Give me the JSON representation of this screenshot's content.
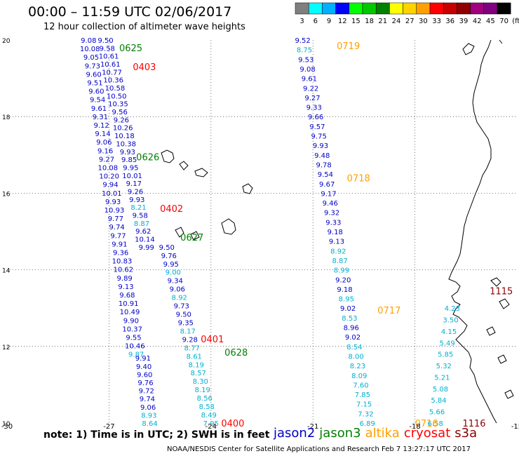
{
  "title": "00:00 – 11:59 UTC 02/06/2017",
  "subtitle": "12 hour collection of altimeter wave heights",
  "colorbar": {
    "unit": "(ft)",
    "stops": [
      {
        "label": "3",
        "color": "#7f7f7f"
      },
      {
        "label": "6",
        "color": "#00ffff"
      },
      {
        "label": "9",
        "color": "#00b0ff"
      },
      {
        "label": "12",
        "color": "#0000ff"
      },
      {
        "label": "15",
        "color": "#00ff00"
      },
      {
        "label": "18",
        "color": "#00c800"
      },
      {
        "label": "21",
        "color": "#008000"
      },
      {
        "label": "24",
        "color": "#ffff00"
      },
      {
        "label": "27",
        "color": "#ffd200"
      },
      {
        "label": "30",
        "color": "#ffa000"
      },
      {
        "label": "33",
        "color": "#ff0000"
      },
      {
        "label": "36",
        "color": "#c80000"
      },
      {
        "label": "39",
        "color": "#900000"
      },
      {
        "label": "42",
        "color": "#a0007f"
      },
      {
        "label": "45",
        "color": "#800080"
      },
      {
        "label": "70",
        "color": "#000000"
      }
    ]
  },
  "axes": {
    "x_ticks": [
      "-30",
      "-27",
      "-24",
      "-21",
      "-18",
      "-15"
    ],
    "y_ticks": [
      "20",
      "18",
      "16",
      "14",
      "12",
      "10"
    ]
  },
  "satellite_colors": {
    "jason2": "#0000c8",
    "jason3": "#008000",
    "altika": "#ffa000",
    "cryosat": "#ff0000",
    "s3a": "#8b0000",
    "swh_low": "#00b0d0"
  },
  "tracks": [
    {
      "name": "track-west-a",
      "lon_start": -27.6,
      "lat_start": 20.0,
      "lon_end": -26.2,
      "lat_end": 11.8,
      "values": [
        "9.08",
        "10.08",
        "9.05",
        "9.73",
        "9.60",
        "9.51",
        "9.60",
        "9.54",
        "9.61",
        "9.31",
        "9.12",
        "9.14",
        "9.06",
        "9.16",
        "9.27",
        "10.08",
        "10.20",
        "9.94",
        "10.01",
        "9.93",
        "10.93",
        "9.77",
        "9.74",
        "9.77",
        "9.91",
        "9.36",
        "10.83",
        "10.62",
        "9.89",
        "9.13",
        "9.68",
        "10.91",
        "10.49",
        "9.90",
        "10.37",
        "9.55",
        "10.46",
        "9.87"
      ],
      "colors": [
        "j",
        "j",
        "j",
        "j",
        "j",
        "j",
        "j",
        "j",
        "j",
        "j",
        "j",
        "j",
        "j",
        "j",
        "j",
        "j",
        "j",
        "j",
        "j",
        "j",
        "j",
        "j",
        "j",
        "j",
        "j",
        "j",
        "j",
        "j",
        "j",
        "j",
        "j",
        "j",
        "j",
        "j",
        "j",
        "j",
        "j",
        "c"
      ]
    },
    {
      "name": "track-west-b",
      "lon_start": -27.1,
      "lat_start": 20.0,
      "lon_end": -25.9,
      "lat_end": 14.6,
      "values": [
        "9.50",
        "9.58",
        "10.61",
        "10.61",
        "10.77",
        "10.36",
        "10.58",
        "10.50",
        "10.35",
        "9.56",
        "9.26",
        "10.26",
        "10.18",
        "10.38",
        "9.93",
        "9.85",
        "9.95",
        "10.01",
        "9.17",
        "9.26",
        "9.93",
        "8.21",
        "9.58",
        "8.87",
        "9.62",
        "10.14",
        "9.99"
      ],
      "colors": [
        "j",
        "j",
        "j",
        "j",
        "j",
        "j",
        "j",
        "j",
        "j",
        "j",
        "j",
        "j",
        "j",
        "j",
        "j",
        "j",
        "j",
        "j",
        "j",
        "j",
        "j",
        "c",
        "j",
        "c",
        "j",
        "j",
        "j"
      ]
    },
    {
      "name": "track-west-c",
      "lon_start": -25.3,
      "lat_start": 14.6,
      "lon_end": -24.0,
      "lat_end": 10.0,
      "values": [
        "9.50",
        "9.76",
        "9.95",
        "9.00",
        "9.34",
        "9.06",
        "8.92",
        "9.73",
        "9.50",
        "9.35",
        "8.17",
        "9.28",
        "8.77",
        "8.61",
        "8.19",
        "8.57",
        "8.30",
        "8.19",
        "8.56",
        "8.58",
        "8.49",
        "7.95"
      ],
      "colors": [
        "j",
        "j",
        "j",
        "c",
        "j",
        "j",
        "c",
        "j",
        "j",
        "j",
        "c",
        "j",
        "c",
        "c",
        "c",
        "c",
        "c",
        "c",
        "c",
        "c",
        "c",
        "c"
      ]
    },
    {
      "name": "track-west-d",
      "lon_start": -26.0,
      "lat_start": 11.7,
      "lon_end": -25.8,
      "lat_end": 10.0,
      "values": [
        "9.91",
        "9.40",
        "9.60",
        "9.76",
        "9.72",
        "9.74",
        "9.06",
        "8.93",
        "8.64"
      ],
      "colors": [
        "j",
        "j",
        "j",
        "j",
        "j",
        "j",
        "j",
        "c",
        "c"
      ]
    },
    {
      "name": "track-mid",
      "lon_start": -21.3,
      "lat_start": 20.0,
      "lon_end": -19.4,
      "lat_end": 10.0,
      "values": [
        "9.52",
        "8.75",
        "9.53",
        "9.08",
        "9.61",
        "9.22",
        "9.27",
        "9.33",
        "9.66",
        "9.57",
        "9.75",
        "9.93",
        "9.48",
        "9.78",
        "9.54",
        "9.67",
        "9.17",
        "9.46",
        "9.32",
        "9.33",
        "9.18",
        "9.13",
        "8.92",
        "8.87",
        "8.99",
        "9.20",
        "9.18",
        "8.95",
        "9.02",
        "8.53",
        "8.96",
        "9.02",
        "8.54",
        "8.00",
        "8.23",
        "8.09",
        "7.60",
        "7.85",
        "7.15",
        "7.32",
        "6.89"
      ],
      "colors": [
        "j",
        "c",
        "j",
        "j",
        "j",
        "j",
        "j",
        "j",
        "j",
        "j",
        "j",
        "j",
        "j",
        "j",
        "j",
        "j",
        "j",
        "j",
        "j",
        "j",
        "j",
        "j",
        "c",
        "c",
        "c",
        "j",
        "j",
        "c",
        "j",
        "c",
        "j",
        "j",
        "c",
        "c",
        "c",
        "c",
        "c",
        "c",
        "c",
        "c",
        "c"
      ]
    },
    {
      "name": "track-east",
      "lon_start": -16.9,
      "lat_start": 13.0,
      "lon_end": -17.4,
      "lat_end": 10.0,
      "values": [
        "4.23",
        "3.50",
        "4.15",
        "5.49",
        "5.85",
        "5.32",
        "5.21",
        "5.08",
        "5.84",
        "5.66",
        "6.58"
      ],
      "colors": [
        "c",
        "c",
        "c",
        "c",
        "c",
        "c",
        "c",
        "c",
        "c",
        "c",
        "c"
      ]
    }
  ],
  "time_labels": [
    {
      "text": "0625",
      "sat": "jason3",
      "lon": -26.7,
      "lat": 19.8
    },
    {
      "text": "0403",
      "sat": "cryosat",
      "lon": -26.3,
      "lat": 19.3
    },
    {
      "text": "0626",
      "sat": "jason3",
      "lon": -26.2,
      "lat": 16.95
    },
    {
      "text": "0402",
      "sat": "cryosat",
      "lon": -25.5,
      "lat": 15.6
    },
    {
      "text": "0627",
      "sat": "jason3",
      "lon": -24.9,
      "lat": 14.85
    },
    {
      "text": "0401",
      "sat": "cryosat",
      "lon": -24.3,
      "lat": 12.2
    },
    {
      "text": "0628",
      "sat": "jason3",
      "lon": -23.6,
      "lat": 11.85
    },
    {
      "text": "0400",
      "sat": "cryosat",
      "lon": -23.7,
      "lat": 10.0
    },
    {
      "text": "0719",
      "sat": "altika",
      "lon": -20.3,
      "lat": 19.85
    },
    {
      "text": "0718",
      "sat": "altika",
      "lon": -20.0,
      "lat": 16.4
    },
    {
      "text": "0717",
      "sat": "altika",
      "lon": -19.1,
      "lat": 12.95
    },
    {
      "text": "0716",
      "sat": "altika",
      "lon": -18.0,
      "lat": 10.0
    },
    {
      "text": "1115",
      "sat": "s3a",
      "lon": -15.8,
      "lat": 13.45
    },
    {
      "text": "1116",
      "sat": "s3a",
      "lon": -16.6,
      "lat": 10.0
    }
  ],
  "note": "note: 1) Time is in UTC; 2) SWH is in feet",
  "legend": [
    {
      "label": "jason2",
      "sat": "jason2"
    },
    {
      "label": "jason3",
      "sat": "jason3"
    },
    {
      "label": "altika",
      "sat": "altika"
    },
    {
      "label": "cryosat",
      "sat": "cryosat"
    },
    {
      "label": "s3a",
      "sat": "s3a"
    }
  ],
  "credit": "NOAA/NESDIS Center for Satellite Applications and Research    Feb  7 13:27:17 UTC 2017"
}
